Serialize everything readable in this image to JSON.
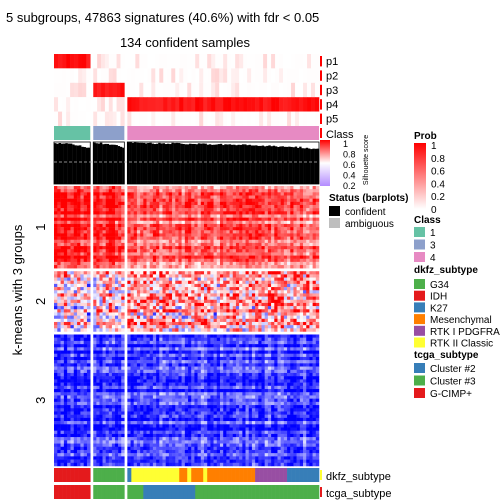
{
  "chart_data": {
    "type": "heatmap",
    "title": "5 subgroups, 47863 signatures (40.6%) with fdr < 0.05",
    "subtitle": "134 confident samples",
    "ylabel": "k-means with 3 groups",
    "row_groups": [
      "1",
      "2",
      "3"
    ],
    "row_group_fractions": [
      0.3,
      0.22,
      0.48
    ],
    "column_groups": [
      {
        "class": "1",
        "fraction": 0.14
      },
      {
        "class": "3",
        "fraction": 0.12
      },
      {
        "class": "4",
        "fraction": 0.74
      }
    ],
    "prob_rows": [
      "p1",
      "p2",
      "p3",
      "p4",
      "p5"
    ],
    "annotation_tracks": [
      "Class",
      "Silhouette score",
      "dkfz_subtype",
      "tcga_subtype"
    ],
    "silhouette_axis_ticks": [
      "1",
      "0.8",
      "0.6",
      "0.4",
      "0.2"
    ],
    "silhouette_label": "Silhouette\nscore",
    "legends": {
      "prob": {
        "title": "Prob",
        "ticks": [
          "1",
          "0.8",
          "0.6",
          "0.4",
          "0.2",
          "0"
        ],
        "colors": [
          "#ff0000",
          "#ffffff"
        ]
      },
      "status": {
        "title": "Status (barplots)",
        "entries": [
          {
            "label": "confident",
            "color": "#000000"
          },
          {
            "label": "ambiguous",
            "color": "#bebebe"
          }
        ]
      },
      "class": {
        "title": "Class",
        "entries": [
          {
            "label": "1",
            "color": "#66c2a5"
          },
          {
            "label": "3",
            "color": "#8da0cb"
          },
          {
            "label": "4",
            "color": "#e78ac3"
          }
        ]
      },
      "dkfz_subtype": {
        "title": "dkfz_subtype",
        "entries": [
          {
            "label": "G34",
            "color": "#4daf4a"
          },
          {
            "label": "IDH",
            "color": "#e41a1c"
          },
          {
            "label": "K27",
            "color": "#377eb8"
          },
          {
            "label": "Mesenchymal",
            "color": "#ff7f00"
          },
          {
            "label": "RTK I PDGFRA",
            "color": "#984ea3"
          },
          {
            "label": "RTK II Classic",
            "color": "#ffff33"
          }
        ]
      },
      "tcga_subtype": {
        "title": "tcga_subtype",
        "entries": [
          {
            "label": "Cluster #2",
            "color": "#377eb8"
          },
          {
            "label": "Cluster #3",
            "color": "#4daf4a"
          },
          {
            "label": "G-CIMP+",
            "color": "#e41a1c"
          }
        ]
      }
    },
    "heatmap_colors": {
      "low": "#0000ff",
      "mid": "#ffffff",
      "high": "#ff0000"
    },
    "silhouette_colors": {
      "high": "#ff0000",
      "low": "#b38cff"
    }
  }
}
